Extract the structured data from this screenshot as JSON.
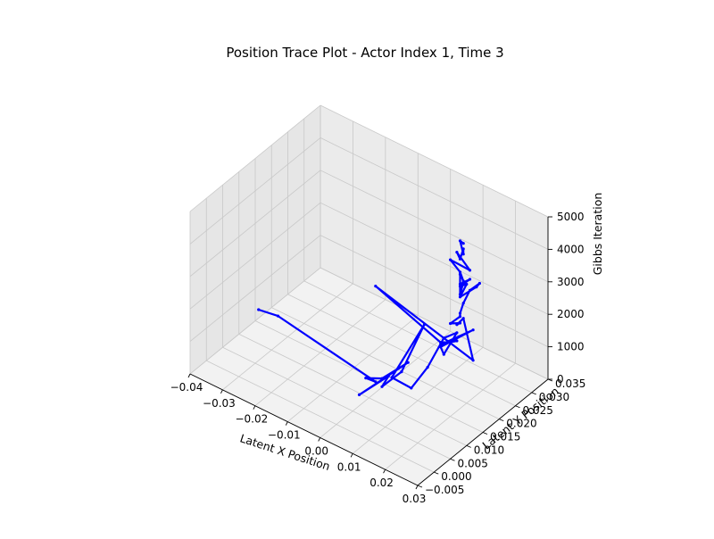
{
  "chart_data": {
    "type": "line",
    "projection": "3d",
    "title": "Position Trace Plot - Actor Index 1, Time 3",
    "xlabel": "Latent X Position",
    "ylabel": "Latent Y Position",
    "zlabel": "Gibbs Iteration",
    "xlim": [
      -0.04,
      0.03
    ],
    "ylim": [
      -0.005,
      0.035
    ],
    "zlim": [
      0,
      5000
    ],
    "xticks": [
      -0.04,
      -0.03,
      -0.02,
      -0.01,
      0.0,
      0.01,
      0.02,
      0.03
    ],
    "xtick_labels": [
      "−0.04",
      "−0.03",
      "−0.02",
      "−0.01",
      "0.00",
      "0.01",
      "0.02",
      "0.03"
    ],
    "yticks": [
      -0.005,
      0.0,
      0.005,
      0.01,
      0.015,
      0.02,
      0.025,
      0.03,
      0.035
    ],
    "ytick_labels": [
      "−0.005",
      "0.000",
      "0.005",
      "0.010",
      "0.015",
      "0.020",
      "0.025",
      "0.030",
      "0.035"
    ],
    "zticks": [
      0,
      1000,
      2000,
      3000,
      4000,
      5000
    ],
    "ztick_labels": [
      "0",
      "1000",
      "2000",
      "3000",
      "4000",
      "5000"
    ],
    "grid": true,
    "line_color": "#0000ff",
    "series": [
      {
        "points": [
          [
            -0.042,
            0.018,
            0
          ],
          [
            -0.036,
            0.018,
            100
          ],
          [
            -0.001,
            0.013,
            200
          ],
          [
            -0.003,
            0.012,
            300
          ],
          [
            0.001,
            0.013,
            400
          ],
          [
            0.003,
            0.019,
            500
          ],
          [
            0.002,
            0.005,
            600
          ],
          [
            0.004,
            0.012,
            700
          ],
          [
            0.006,
            0.008,
            800
          ],
          [
            0.007,
            0.013,
            900
          ],
          [
            0.001,
            0.026,
            1000
          ],
          [
            0.008,
            0.009,
            1100
          ],
          [
            0.015,
            0.008,
            1200
          ],
          [
            0.014,
            0.014,
            1300
          ],
          [
            0.011,
            0.022,
            1400
          ],
          [
            0.013,
            0.024,
            1500
          ],
          [
            0.016,
            0.017,
            1550
          ],
          [
            0.014,
            0.018,
            1600
          ],
          [
            0.017,
            0.025,
            1700
          ],
          [
            0.015,
            0.017,
            1800
          ],
          [
            0.018,
            0.019,
            1900
          ],
          [
            0.016,
            0.016,
            2000
          ],
          [
            -0.009,
            0.021,
            2100
          ],
          [
            0.028,
            0.014,
            2200
          ],
          [
            0.017,
            0.022,
            2300
          ],
          [
            0.018,
            0.019,
            2400
          ],
          [
            0.019,
            0.019,
            2500
          ],
          [
            0.018,
            0.017,
            2600
          ],
          [
            0.019,
            0.019,
            2700
          ],
          [
            0.019,
            0.019,
            2800
          ],
          [
            0.018,
            0.021,
            2900
          ],
          [
            0.017,
            0.024,
            3000
          ],
          [
            0.018,
            0.026,
            3100
          ],
          [
            0.019,
            0.024,
            3200
          ],
          [
            0.019,
            0.019,
            3300
          ],
          [
            0.018,
            0.022,
            3400
          ],
          [
            0.018,
            0.02,
            3500
          ],
          [
            0.019,
            0.022,
            3600
          ],
          [
            0.019,
            0.019,
            3700
          ],
          [
            0.02,
            0.019,
            3800
          ],
          [
            0.023,
            0.015,
            3900
          ],
          [
            0.019,
            0.019,
            4000
          ],
          [
            0.022,
            0.017,
            4100
          ],
          [
            0.02,
            0.018,
            4200
          ],
          [
            0.016,
            0.019,
            4300
          ],
          [
            0.023,
            0.018,
            4400
          ],
          [
            0.017,
            0.02,
            4500
          ],
          [
            0.02,
            0.018,
            4600
          ],
          [
            0.019,
            0.02,
            4700
          ],
          [
            0.021,
            0.018,
            4800
          ],
          [
            0.018,
            0.02,
            4900
          ],
          [
            0.02,
            0.019,
            5000
          ]
        ]
      }
    ]
  }
}
